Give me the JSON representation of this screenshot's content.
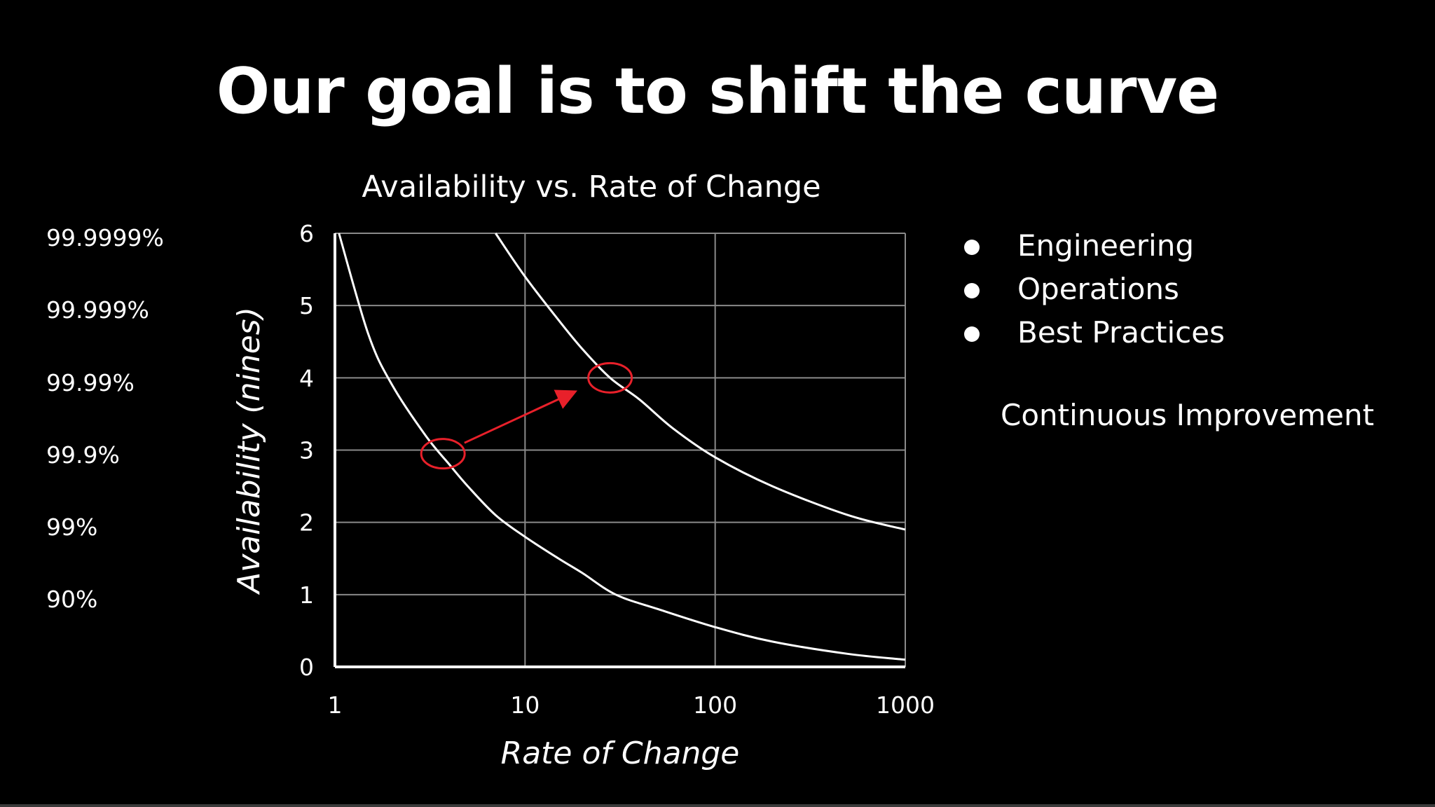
{
  "slide": {
    "title": "Our goal is to shift the curve",
    "bullets": [
      "Engineering",
      "Operations",
      "Best Practices"
    ],
    "note": "Continuous Improvement"
  },
  "nines_labels": [
    "99.9999%",
    "99.999%",
    "99.99%",
    "99.9%",
    "99%",
    "90%"
  ],
  "chart_data": {
    "type": "line",
    "title": "Availability vs. Rate of Change",
    "xlabel": "Rate of Change",
    "ylabel": "Availability (nines)",
    "x_scale": "log",
    "xlim": [
      1,
      1000
    ],
    "ylim": [
      0,
      6
    ],
    "x_ticks": [
      "1",
      "10",
      "100",
      "1000"
    ],
    "y_ticks": [
      "0",
      "1",
      "2",
      "3",
      "4",
      "5",
      "6"
    ],
    "grid": true,
    "series": [
      {
        "points": [
          [
            1.05,
            6
          ],
          [
            1.5,
            4.6
          ],
          [
            2,
            3.9
          ],
          [
            3,
            3.2
          ],
          [
            4,
            2.8
          ],
          [
            5,
            2.5
          ],
          [
            7,
            2.1
          ],
          [
            10,
            1.8
          ],
          [
            15,
            1.5
          ],
          [
            20,
            1.3
          ],
          [
            30,
            1.0
          ],
          [
            50,
            0.8
          ],
          [
            100,
            0.55
          ],
          [
            200,
            0.35
          ],
          [
            500,
            0.18
          ],
          [
            1000,
            0.1
          ]
        ]
      },
      {
        "points": [
          [
            7,
            6
          ],
          [
            10,
            5.4
          ],
          [
            15,
            4.8
          ],
          [
            20,
            4.4
          ],
          [
            28,
            4.0
          ],
          [
            40,
            3.7
          ],
          [
            60,
            3.3
          ],
          [
            100,
            2.9
          ],
          [
            200,
            2.5
          ],
          [
            500,
            2.1
          ],
          [
            1000,
            1.9
          ]
        ]
      }
    ],
    "annotations": [
      {
        "type": "circle",
        "x": 3.7,
        "y": 2.95
      },
      {
        "type": "circle",
        "x": 28,
        "y": 4.0
      },
      {
        "type": "arrow",
        "from": [
          4.8,
          3.1
        ],
        "to": [
          18,
          3.8
        ]
      }
    ],
    "colors": {
      "curve": "#ffffff",
      "grid": "#8a8a8a",
      "annotation": "#e8202a"
    }
  }
}
